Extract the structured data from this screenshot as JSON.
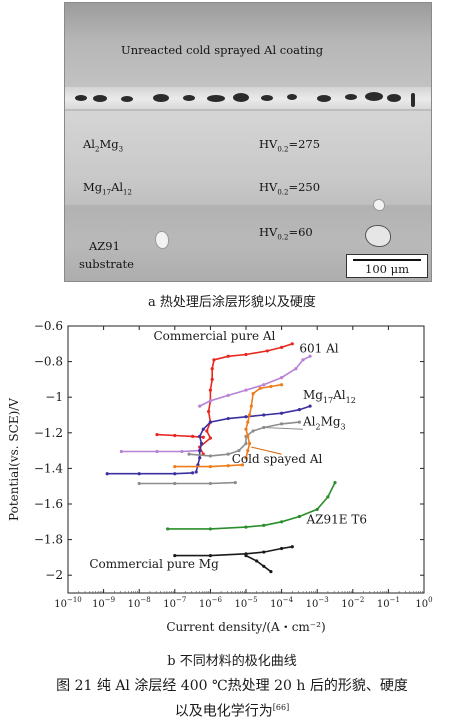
{
  "micrograph": {
    "coating_label": "Unreacted cold sprayed Al coating",
    "phase1": {
      "base": "Al",
      "sub1": "2",
      "mid": "Mg",
      "sub2": "3"
    },
    "phase2": {
      "base": "Mg",
      "sub1": "17",
      "mid": "Al",
      "sub2": "12"
    },
    "hv1": {
      "base": "HV",
      "sub": "0.2",
      "rest": "=275"
    },
    "hv2": {
      "base": "HV",
      "sub": "0.2",
      "rest": "=250"
    },
    "hv3": {
      "base": "HV",
      "sub": "0.2",
      "rest": "=60"
    },
    "substrate_line1": "AZ91",
    "substrate_line2": "substrate",
    "scale_label": "100 μm"
  },
  "caption_a": "a  热处理后涂层形貌以及硬度",
  "chart_data": {
    "type": "line",
    "ylabel": "Potential(vs. SCE)/V",
    "xlabel": "Current density/(A・cm⁻²)",
    "x_scale": "log",
    "xlim_exp": [
      -10,
      0
    ],
    "ylim": [
      -2.1,
      -0.6
    ],
    "y_ticks": [
      "−0.6",
      "−0.8",
      "−1",
      "−1.2",
      "−1.4",
      "−1.6",
      "−1.8",
      "−2"
    ],
    "y_tick_values": [
      -0.6,
      -0.8,
      -1.0,
      -1.2,
      -1.4,
      -1.6,
      -1.8,
      -2.0
    ],
    "x_tick_exponents": [
      -10,
      -9,
      -8,
      -7,
      -6,
      -5,
      -4,
      -3,
      -2,
      -1,
      0
    ],
    "series": [
      {
        "name": "Commercial pure Al",
        "color": "#e8271f",
        "points": [
          [
            -6.2,
            -1.32
          ],
          [
            -6.3,
            -1.28
          ],
          [
            -6.0,
            -1.23
          ],
          [
            -6.1,
            -1.19
          ],
          [
            -6.0,
            -1.14
          ],
          [
            -6.05,
            -1.08
          ],
          [
            -6.0,
            -1.02
          ],
          [
            -6.0,
            -0.96
          ],
          [
            -5.95,
            -0.9
          ],
          [
            -5.95,
            -0.84
          ],
          [
            -5.9,
            -0.79
          ],
          [
            -5.5,
            -0.77
          ],
          [
            -5.0,
            -0.76
          ],
          [
            -4.4,
            -0.74
          ],
          [
            -4.0,
            -0.72
          ],
          [
            -3.7,
            -0.7
          ]
        ]
      },
      {
        "name": "Commercial pure Al (cathodic)",
        "color": "#e8271f",
        "points": [
          [
            -7.5,
            -1.21
          ],
          [
            -7.0,
            -1.215
          ],
          [
            -6.5,
            -1.22
          ],
          [
            -6.2,
            -1.225
          ]
        ]
      },
      {
        "name": "601 Al",
        "color": "#b882d6",
        "points": [
          [
            -6.3,
            -1.05
          ],
          [
            -6.0,
            -1.02
          ],
          [
            -5.5,
            -0.99
          ],
          [
            -5.0,
            -0.96
          ],
          [
            -4.5,
            -0.93
          ],
          [
            -4.0,
            -0.89
          ],
          [
            -3.6,
            -0.84
          ],
          [
            -3.4,
            -0.79
          ],
          [
            -3.2,
            -0.77
          ]
        ]
      },
      {
        "name": "601 Al (cathodic)",
        "color": "#b882d6",
        "points": [
          [
            -8.5,
            -1.305
          ],
          [
            -7.5,
            -1.305
          ],
          [
            -6.8,
            -1.305
          ],
          [
            -6.3,
            -1.3
          ]
        ]
      },
      {
        "name": "Mg17Al12",
        "color": "#3c2fa0",
        "points": [
          [
            -6.4,
            -1.42
          ],
          [
            -6.35,
            -1.38
          ],
          [
            -6.3,
            -1.34
          ],
          [
            -6.3,
            -1.3
          ],
          [
            -6.25,
            -1.26
          ],
          [
            -6.3,
            -1.22
          ],
          [
            -6.2,
            -1.18
          ],
          [
            -6.0,
            -1.14
          ],
          [
            -5.5,
            -1.12
          ],
          [
            -5.0,
            -1.11
          ],
          [
            -4.5,
            -1.1
          ],
          [
            -4.0,
            -1.09
          ],
          [
            -3.5,
            -1.07
          ],
          [
            -3.2,
            -1.05
          ]
        ]
      },
      {
        "name": "Mg17Al12 (cathodic)",
        "color": "#3c2fa0",
        "points": [
          [
            -8.9,
            -1.43
          ],
          [
            -8.0,
            -1.43
          ],
          [
            -7.0,
            -1.43
          ],
          [
            -6.5,
            -1.425
          ]
        ]
      },
      {
        "name": "Al2Mg3",
        "color": "#8d8d8d",
        "points": [
          [
            -6.6,
            -1.32
          ],
          [
            -6.0,
            -1.33
          ],
          [
            -5.5,
            -1.32
          ],
          [
            -5.2,
            -1.3
          ],
          [
            -5.0,
            -1.26
          ],
          [
            -5.0,
            -1.22
          ],
          [
            -4.8,
            -1.19
          ],
          [
            -4.5,
            -1.17
          ],
          [
            -4.0,
            -1.15
          ],
          [
            -3.5,
            -1.14
          ]
        ]
      },
      {
        "name": "Al2Mg3 (cathodic)",
        "color": "#8d8d8d",
        "points": [
          [
            -8.0,
            -1.485
          ],
          [
            -7.0,
            -1.485
          ],
          [
            -6.0,
            -1.485
          ],
          [
            -5.3,
            -1.48
          ]
        ]
      },
      {
        "name": "Cold spayed Al",
        "color": "#ef7c1c",
        "points": [
          [
            -5.0,
            -1.34
          ],
          [
            -4.95,
            -1.3
          ],
          [
            -4.9,
            -1.26
          ],
          [
            -4.95,
            -1.22
          ],
          [
            -5.0,
            -1.18
          ],
          [
            -4.95,
            -1.14
          ],
          [
            -4.9,
            -1.1
          ],
          [
            -4.85,
            -1.05
          ],
          [
            -4.8,
            -0.98
          ],
          [
            -4.6,
            -0.95
          ],
          [
            -4.3,
            -0.94
          ],
          [
            -4.0,
            -0.93
          ]
        ]
      },
      {
        "name": "Cold spayed Al (cathodic)",
        "color": "#ef7c1c",
        "points": [
          [
            -7.0,
            -1.39
          ],
          [
            -6.0,
            -1.39
          ],
          [
            -5.5,
            -1.385
          ],
          [
            -5.1,
            -1.38
          ]
        ]
      },
      {
        "name": "AZ91E T6",
        "color": "#2a8f2a",
        "points": [
          [
            -7.2,
            -1.74
          ],
          [
            -6.0,
            -1.74
          ],
          [
            -5.0,
            -1.73
          ],
          [
            -4.5,
            -1.72
          ],
          [
            -4.0,
            -1.7
          ],
          [
            -3.5,
            -1.67
          ],
          [
            -3.0,
            -1.63
          ],
          [
            -2.7,
            -1.56
          ],
          [
            -2.5,
            -1.48
          ]
        ]
      },
      {
        "name": "Commercial pure Mg",
        "color": "#1a1a1a",
        "points": [
          [
            -7.0,
            -1.89
          ],
          [
            -6.0,
            -1.89
          ],
          [
            -5.0,
            -1.88
          ],
          [
            -4.5,
            -1.87
          ],
          [
            -4.0,
            -1.85
          ],
          [
            -3.7,
            -1.84
          ]
        ]
      },
      {
        "name": "Commercial pure Mg (cathodic)",
        "color": "#1a1a1a",
        "points": [
          [
            -5.0,
            -1.89
          ],
          [
            -4.7,
            -1.92
          ],
          [
            -4.5,
            -1.95
          ],
          [
            -4.3,
            -1.98
          ]
        ]
      }
    ],
    "labels": [
      {
        "text": "Commercial pure Al",
        "x": -7.6,
        "y": -0.68
      },
      {
        "text": "601 Al",
        "x": -3.5,
        "y": -0.75
      },
      {
        "text": "Cold spayed Al",
        "x": -5.4,
        "y": -1.37
      },
      {
        "text": "AZ91E T6",
        "x": -3.3,
        "y": -1.71
      },
      {
        "text": "Commercial pure Mg",
        "x": -9.4,
        "y": -1.96
      }
    ],
    "subscript_labels": [
      {
        "base": "Mg",
        "sub": "17",
        "rest": "Al",
        "sub2": "12",
        "x": -3.4,
        "y": -1.01
      },
      {
        "base": "Al",
        "sub": "2",
        "rest": "Mg",
        "sub2": "3",
        "x": -3.4,
        "y": -1.16
      }
    ]
  },
  "caption_b": "b  不同材料的极化曲线",
  "figure_caption_line1": "图 21    纯 Al 涂层经 400 ℃热处理 20 h 后的形貌、硬度",
  "figure_caption_line2": "以及电化学行为",
  "figure_caption_ref": "[66]"
}
